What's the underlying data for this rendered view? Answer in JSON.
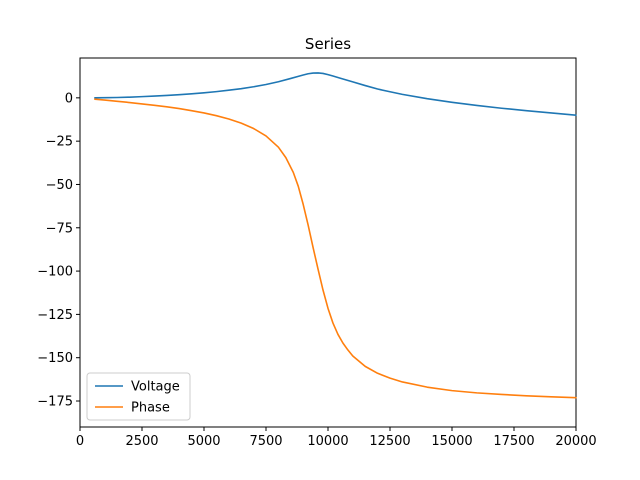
{
  "chart_data": {
    "type": "line",
    "title": "Series",
    "xlabel": "",
    "ylabel": "",
    "xlim": [
      0,
      20000
    ],
    "ylim": [
      -190,
      23
    ],
    "xticks": [
      0,
      2500,
      5000,
      7500,
      10000,
      12500,
      15000,
      17500,
      20000
    ],
    "xtick_labels": [
      "0",
      "2500",
      "5000",
      "7500",
      "10000",
      "12500",
      "15000",
      "17500",
      "20000"
    ],
    "yticks": [
      0,
      -25,
      -50,
      -75,
      -100,
      -125,
      -150,
      -175
    ],
    "ytick_labels": [
      "0",
      "−25",
      "−50",
      "−75",
      "−100",
      "−125",
      "−150",
      "−175"
    ],
    "grid": false,
    "legend_position": "bottom-left",
    "series": [
      {
        "name": "Voltage",
        "color": "#1f77b4",
        "x": [
          600,
          1000,
          1500,
          2000,
          2500,
          3000,
          3500,
          4000,
          4500,
          5000,
          5500,
          6000,
          6500,
          7000,
          7500,
          8000,
          8500,
          8800,
          9000,
          9200,
          9400,
          9600,
          9800,
          10000,
          10200,
          10500,
          11000,
          11500,
          12000,
          12500,
          13000,
          14000,
          15000,
          16000,
          17000,
          18000,
          19000,
          20000
        ],
        "y": [
          0.0,
          0.1,
          0.2,
          0.4,
          0.7,
          1.0,
          1.4,
          1.8,
          2.3,
          2.9,
          3.6,
          4.4,
          5.3,
          6.4,
          7.7,
          9.3,
          11.2,
          12.4,
          13.2,
          13.9,
          14.3,
          14.4,
          14.1,
          13.4,
          12.6,
          11.3,
          9.2,
          7.1,
          5.1,
          3.5,
          2.0,
          -0.5,
          -2.6,
          -4.4,
          -6.0,
          -7.4,
          -8.7,
          -10.0
        ]
      },
      {
        "name": "Phase",
        "color": "#ff7f0e",
        "x": [
          600,
          1000,
          1500,
          2000,
          2500,
          3000,
          3500,
          4000,
          4500,
          5000,
          5500,
          6000,
          6500,
          7000,
          7500,
          8000,
          8300,
          8600,
          8800,
          9000,
          9200,
          9400,
          9600,
          9800,
          10000,
          10200,
          10400,
          10600,
          10800,
          11000,
          11500,
          12000,
          12500,
          13000,
          14000,
          15000,
          16000,
          17000,
          18000,
          19000,
          20000
        ],
        "y": [
          -0.8,
          -1.3,
          -2.0,
          -2.7,
          -3.5,
          -4.3,
          -5.2,
          -6.2,
          -7.4,
          -8.7,
          -10.3,
          -12.2,
          -14.6,
          -17.7,
          -22.0,
          -28.5,
          -34.5,
          -43.0,
          -51.0,
          -61.5,
          -73.5,
          -86.5,
          -99.0,
          -111.0,
          -121.5,
          -130.0,
          -136.5,
          -141.5,
          -145.5,
          -149.0,
          -155.0,
          -159.0,
          -161.8,
          -164.0,
          -167.0,
          -169.0,
          -170.3,
          -171.2,
          -172.0,
          -172.6,
          -173.1
        ]
      }
    ]
  }
}
